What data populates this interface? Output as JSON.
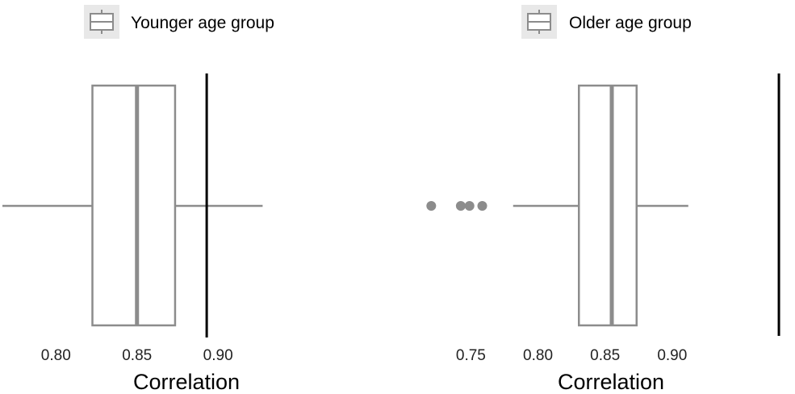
{
  "chart_data": [
    {
      "type": "boxplot",
      "orientation": "horizontal",
      "legend": "Younger age group",
      "xlabel": "Correlation",
      "xlim": [
        0.7655,
        0.9955
      ],
      "xticks": [
        "0.80",
        "0.85",
        "0.90"
      ],
      "xtick_values": [
        0.8,
        0.85,
        0.9
      ],
      "box": {
        "whisker_low": 0.767,
        "q1": 0.8225,
        "median": 0.85,
        "q3": 0.8735,
        "whisker_high": 0.9275
      },
      "outliers": [],
      "reference_line": 0.893,
      "colors": {
        "box": "#8c8c8c",
        "reference": "#000000"
      }
    },
    {
      "type": "boxplot",
      "orientation": "horizontal",
      "legend": "Older age group",
      "xlabel": "Correlation",
      "xlim": [
        0.7155,
        0.9915
      ],
      "xticks": [
        "0.75",
        "0.80",
        "0.85",
        "0.90"
      ],
      "xtick_values": [
        0.75,
        0.8,
        0.85,
        0.9
      ],
      "box": {
        "whisker_low": 0.7815,
        "q1": 0.8305,
        "median": 0.855,
        "q3": 0.8735,
        "whisker_high": 0.912
      },
      "outliers": [
        0.7205,
        0.7425,
        0.749,
        0.7585
      ],
      "reference_line": 0.9795,
      "colors": {
        "box": "#8c8c8c",
        "reference": "#000000"
      }
    }
  ]
}
